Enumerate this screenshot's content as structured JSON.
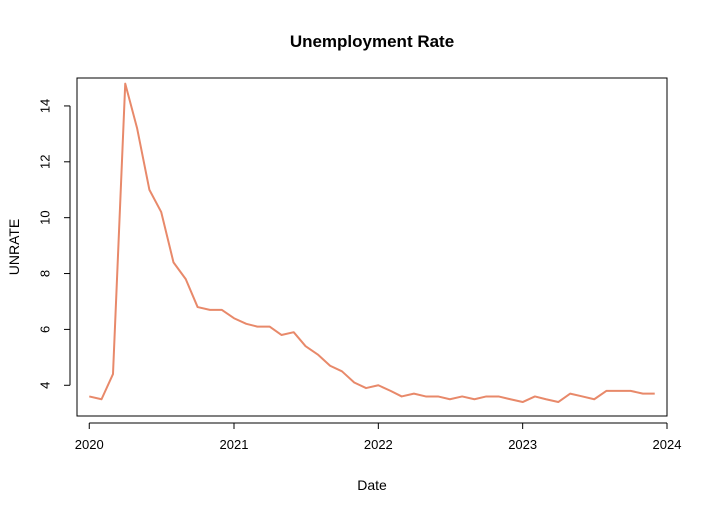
{
  "chart_data": {
    "type": "line",
    "title": "Unemployment Rate",
    "xlabel": "Date",
    "ylabel": "UNRATE",
    "x_ticks": [
      "2020",
      "2021",
      "2022",
      "2023",
      "2024"
    ],
    "y_ticks": [
      "4",
      "6",
      "8",
      "10",
      "12",
      "14"
    ],
    "xlim": [
      "2019-12-01",
      "2024-01-01"
    ],
    "ylim": [
      2.9,
      15.0
    ],
    "grid": false,
    "line_color": "#E8896A",
    "series": [
      {
        "x": [
          "2020-01",
          "2020-02",
          "2020-03",
          "2020-04",
          "2020-05",
          "2020-06",
          "2020-07",
          "2020-08",
          "2020-09",
          "2020-10",
          "2020-11",
          "2020-12",
          "2021-01",
          "2021-02",
          "2021-03",
          "2021-04",
          "2021-05",
          "2021-06",
          "2021-07",
          "2021-08",
          "2021-09",
          "2021-10",
          "2021-11",
          "2021-12",
          "2022-01",
          "2022-02",
          "2022-03",
          "2022-04",
          "2022-05",
          "2022-06",
          "2022-07",
          "2022-08",
          "2022-09",
          "2022-10",
          "2022-11",
          "2022-12",
          "2023-01",
          "2023-02",
          "2023-03",
          "2023-04",
          "2023-05",
          "2023-06",
          "2023-07",
          "2023-08",
          "2023-09",
          "2023-10",
          "2023-11",
          "2023-12"
        ],
        "values": [
          3.6,
          3.5,
          4.4,
          14.8,
          13.2,
          11.0,
          10.2,
          8.4,
          7.8,
          6.8,
          6.7,
          6.7,
          6.4,
          6.2,
          6.1,
          6.1,
          5.8,
          5.9,
          5.4,
          5.1,
          4.7,
          4.5,
          4.1,
          3.9,
          4.0,
          3.8,
          3.6,
          3.7,
          3.6,
          3.6,
          3.5,
          3.6,
          3.5,
          3.6,
          3.6,
          3.5,
          3.4,
          3.6,
          3.5,
          3.4,
          3.7,
          3.6,
          3.5,
          3.8,
          3.8,
          3.8,
          3.7,
          3.7
        ]
      }
    ]
  }
}
